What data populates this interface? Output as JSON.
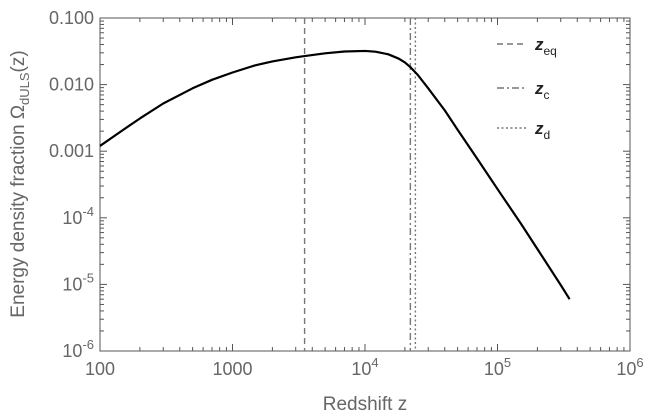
{
  "chart_data": {
    "type": "line",
    "xlabel": "Redshift  z",
    "ylabel_main": "Energy density fraction  Ω",
    "ylabel_sub": "dULS",
    "ylabel_tail": "(z)",
    "x_scale": "log",
    "y_scale": "log",
    "xlim": [
      100,
      1000000
    ],
    "ylim": [
      1e-06,
      0.1
    ],
    "grid": false,
    "legend_position": "top-right",
    "x_ticks": [
      {
        "value": 100,
        "label": "100"
      },
      {
        "value": 1000,
        "label": "1000"
      },
      {
        "value": 10000,
        "base": "10",
        "exp": "4"
      },
      {
        "value": 100000,
        "base": "10",
        "exp": "5"
      },
      {
        "value": 1000000,
        "base": "10",
        "exp": "6"
      }
    ],
    "y_ticks": [
      {
        "value": 1e-06,
        "base": "10",
        "exp": "-6"
      },
      {
        "value": 1e-05,
        "base": "10",
        "exp": "-5"
      },
      {
        "value": 0.0001,
        "base": "10",
        "exp": "-4"
      },
      {
        "value": 0.001,
        "label": "0.001"
      },
      {
        "value": 0.01,
        "label": "0.010"
      },
      {
        "value": 0.1,
        "label": "0.100"
      }
    ],
    "series": [
      {
        "name": "",
        "color": "#000000",
        "x": [
          100,
          150,
          200,
          300,
          500,
          700,
          1000,
          1500,
          2000,
          3000,
          3500,
          5000,
          7000,
          10000,
          12000,
          15000,
          18000,
          20000,
          22000,
          25000,
          30000,
          40000,
          50000,
          70000,
          100000,
          150000,
          200000,
          300000,
          350000
        ],
        "y": [
          0.0012,
          0.0021,
          0.0031,
          0.0052,
          0.0088,
          0.0118,
          0.0152,
          0.0196,
          0.0223,
          0.0257,
          0.0268,
          0.0295,
          0.0314,
          0.032,
          0.0312,
          0.0285,
          0.0245,
          0.0215,
          0.0183,
          0.014,
          0.0088,
          0.0041,
          0.0021,
          0.00078,
          0.00027,
          8.2e-05,
          3.4e-05,
          9.8e-06,
          6e-06
        ]
      }
    ],
    "vlines": [
      {
        "label": "z",
        "sub": "eq",
        "value": 3500,
        "dash": "6,4",
        "color": "#777777"
      },
      {
        "label": "z",
        "sub": "c",
        "value": 22000,
        "dash": "7,3,2,3",
        "color": "#777777"
      },
      {
        "label": "z",
        "sub": "d",
        "value": 24000,
        "dash": "2,2.5",
        "color": "#777777"
      }
    ]
  }
}
